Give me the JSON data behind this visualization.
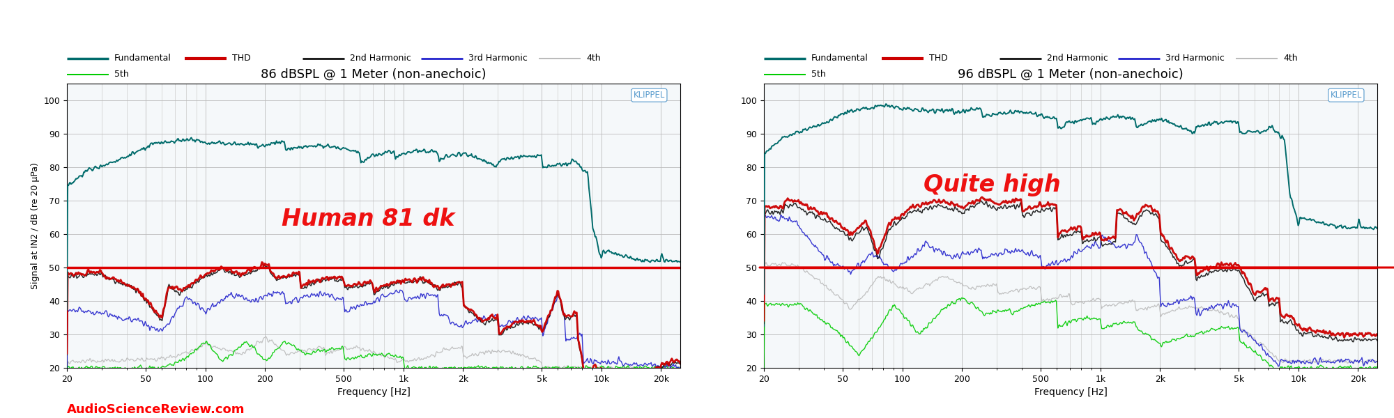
{
  "title_left": "86 dBSPL @ 1 Meter (non-anechoic)",
  "title_right": "96 dBSPL @ 1 Meter (non-anechoic)",
  "ylabel": "Signal at IN2 / dB (re 20 µPa)",
  "xlabel": "Frequency [Hz]",
  "ylim": [
    20,
    105
  ],
  "yticks": [
    20,
    30,
    40,
    50,
    60,
    70,
    80,
    90,
    100
  ],
  "freq_min": 20,
  "freq_max": 25000,
  "ref_line_y": 50,
  "watermark": "AudioScienceReview.com",
  "klippel_label": "KLIPPEL",
  "annotation_left": "Human 81 dk",
  "annotation_right": "Quite high",
  "colors": {
    "fundamental": "#006B6B",
    "thd": "#CC0000",
    "h2": "#111111",
    "h3": "#2222CC",
    "h4": "#BBBBBB",
    "h5": "#00CC00",
    "ref_line": "#DD0000",
    "watermark": "#FF0000",
    "klippel": "#5599CC",
    "annotation": "#EE1111",
    "background": "#FFFFFF",
    "grid": "#CCCCCC"
  },
  "legend_entries": [
    "Fundamental",
    "THD",
    "2nd Harmonic",
    "3rd Harmonic",
    "4th",
    "5th"
  ]
}
